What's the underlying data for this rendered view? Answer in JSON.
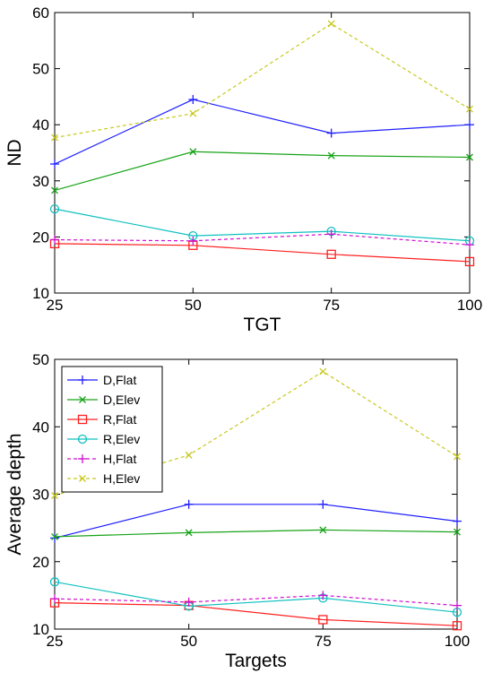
{
  "chart_data": [
    {
      "type": "line",
      "title": "",
      "xlabel": "TGT",
      "ylabel": "ND",
      "x": [
        25,
        50,
        75,
        100
      ],
      "xlim": [
        25,
        100
      ],
      "ylim": [
        10,
        60
      ],
      "xticks": [
        "25",
        "50",
        "75",
        "100"
      ],
      "yticks": [
        "10",
        "20",
        "30",
        "40",
        "50",
        "60"
      ],
      "grid": false,
      "legend": "none",
      "series": [
        {
          "name": "D,Flat",
          "values": [
            33,
            44.5,
            38.5,
            40
          ],
          "color": "#1f1fff",
          "marker": "plus",
          "dash": "solid"
        },
        {
          "name": "D,Elev",
          "values": [
            28.3,
            35.2,
            34.5,
            34.2
          ],
          "color": "#17a317",
          "marker": "x",
          "dash": "solid"
        },
        {
          "name": "R,Flat",
          "values": [
            18.8,
            18.5,
            16.9,
            15.6
          ],
          "color": "#ff2020",
          "marker": "square",
          "dash": "solid"
        },
        {
          "name": "R,Elev",
          "values": [
            25,
            20.2,
            21,
            19.3
          ],
          "color": "#10c0c0",
          "marker": "circle",
          "dash": "solid"
        },
        {
          "name": "H,Flat",
          "values": [
            19.5,
            19.3,
            20.5,
            18.6
          ],
          "color": "#d010d0",
          "marker": "plus",
          "dash": "dashed"
        },
        {
          "name": "H,Elev",
          "values": [
            37.7,
            42,
            58,
            42.8
          ],
          "color": "#c8c820",
          "marker": "x",
          "dash": "dashed"
        }
      ]
    },
    {
      "type": "line",
      "title": "",
      "xlabel": "Targets",
      "ylabel": "Average depth",
      "x": [
        25,
        50,
        75,
        100
      ],
      "xlim": [
        25,
        100
      ],
      "ylim": [
        10,
        50
      ],
      "xticks": [
        "25",
        "50",
        "75",
        "100"
      ],
      "yticks": [
        "10",
        "20",
        "30",
        "40",
        "50"
      ],
      "grid": false,
      "legend": "top-left",
      "series": [
        {
          "name": "D,Flat",
          "values": [
            23.5,
            28.5,
            28.5,
            26
          ],
          "color": "#1f1fff",
          "marker": "plus",
          "dash": "solid"
        },
        {
          "name": "D,Elev",
          "values": [
            23.7,
            24.3,
            24.7,
            24.4
          ],
          "color": "#17a317",
          "marker": "x",
          "dash": "solid"
        },
        {
          "name": "R,Flat",
          "values": [
            13.9,
            13.5,
            11.4,
            10.5
          ],
          "color": "#ff2020",
          "marker": "square",
          "dash": "solid"
        },
        {
          "name": "R,Elev",
          "values": [
            17,
            13.4,
            14.6,
            12.5
          ],
          "color": "#10c0c0",
          "marker": "circle",
          "dash": "solid"
        },
        {
          "name": "H,Flat",
          "values": [
            14.5,
            14,
            15,
            13.5
          ],
          "color": "#d010d0",
          "marker": "plus",
          "dash": "dashed"
        },
        {
          "name": "H,Elev",
          "values": [
            29.8,
            35.8,
            48.2,
            35.6
          ],
          "color": "#c8c820",
          "marker": "x",
          "dash": "dashed"
        }
      ]
    }
  ]
}
